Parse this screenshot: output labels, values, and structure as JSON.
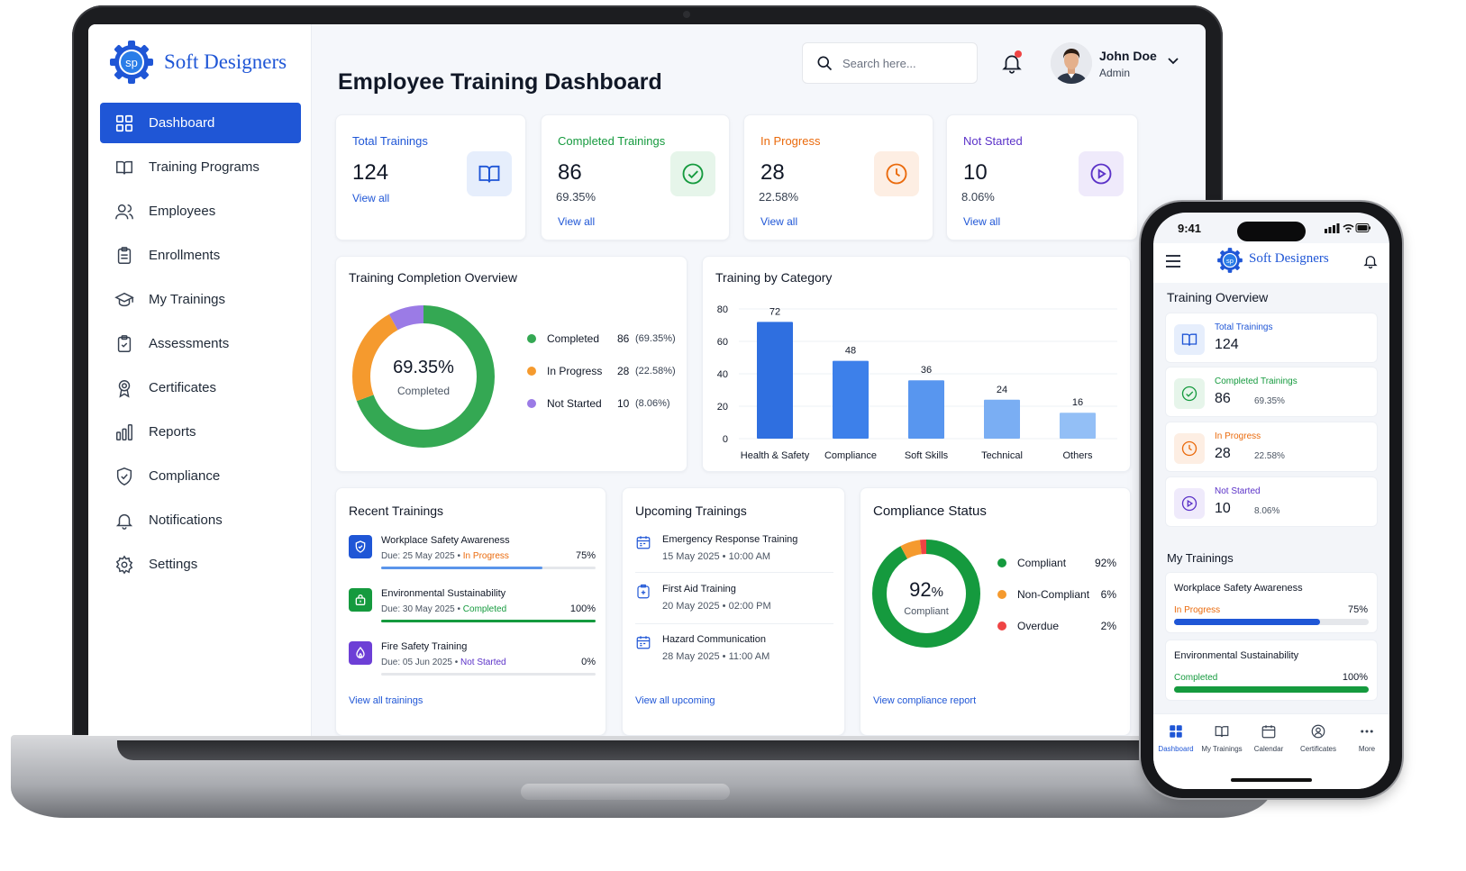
{
  "brand": {
    "name": "Soft Designers",
    "initials": "sp"
  },
  "sidebar": {
    "items": [
      {
        "label": "Dashboard",
        "icon": "grid-icon",
        "active": true
      },
      {
        "label": "Training Programs",
        "icon": "book-icon"
      },
      {
        "label": "Employees",
        "icon": "users-icon"
      },
      {
        "label": "Enrollments",
        "icon": "clipboard-icon"
      },
      {
        "label": "My Trainings",
        "icon": "graduation-cap-icon"
      },
      {
        "label": "Assessments",
        "icon": "clipboard-check-icon"
      },
      {
        "label": "Certificates",
        "icon": "award-icon"
      },
      {
        "label": "Reports",
        "icon": "bar-chart-icon"
      },
      {
        "label": "Compliance",
        "icon": "shield-check-icon"
      },
      {
        "label": "Notifications",
        "icon": "bell-icon"
      },
      {
        "label": "Settings",
        "icon": "gear-icon"
      }
    ]
  },
  "header": {
    "title": "Employee Training Dashboard",
    "search_placeholder": "Search here...",
    "user": {
      "name": "John Doe",
      "role": "Admin"
    }
  },
  "stats": [
    {
      "label": "Total Trainings",
      "value": "124",
      "pct": "",
      "link": "View all",
      "color": "#1f56d6",
      "icon": "book-open-icon"
    },
    {
      "label": "Completed Trainings",
      "value": "86",
      "pct": "69.35%",
      "link": "View all",
      "color": "#159a3e",
      "icon": "check-circle-icon"
    },
    {
      "label": "In Progress",
      "value": "28",
      "pct": "22.58%",
      "link": "View all",
      "color": "#ea6a0c",
      "icon": "clock-icon"
    },
    {
      "label": "Not Started",
      "value": "10",
      "pct": "8.06%",
      "link": "View all",
      "color": "#5b32c8",
      "icon": "play-circle-icon"
    }
  ],
  "completion": {
    "title": "Training Completion Overview",
    "center_value": "69.35%",
    "center_label": "Completed",
    "legend": [
      {
        "label": "Completed",
        "count": "86",
        "pct": "(69.35%)",
        "value": 86,
        "color": "#34a853"
      },
      {
        "label": "In Progress",
        "count": "28",
        "pct": "(22.58%)",
        "value": 28,
        "color": "#f59a2e"
      },
      {
        "label": "Not Started",
        "count": "10",
        "pct": "(8.06%)",
        "value": 10,
        "color": "#9b7be6"
      }
    ]
  },
  "chart_data": {
    "type": "bar",
    "title": "Training by Category",
    "categories": [
      "Health & Safety",
      "Compliance",
      "Soft Skills",
      "Technical",
      "Others"
    ],
    "values": [
      72,
      48,
      36,
      24,
      16
    ],
    "yticks": [
      "0",
      "20",
      "40",
      "60",
      "80"
    ],
    "ylim": [
      0,
      80
    ],
    "colors": [
      "#2f6fe0",
      "#3d80ea",
      "#5896ef",
      "#7aaef3",
      "#93bff6"
    ],
    "grid": true,
    "xlabel": "",
    "ylabel": ""
  },
  "recent": {
    "title": "Recent Trainings",
    "items": [
      {
        "title": "Workplace Safety Awareness",
        "due": "Due: 25 May 2025",
        "status": "In Progress",
        "pct": "75%",
        "progress": 0.75,
        "status_color": "#ea6a0c",
        "bar_color": "#5b95ea",
        "icon_bg": "#1f56d6",
        "icon": "shield-icon"
      },
      {
        "title": "Environmental Sustainability",
        "due": "Due: 30 May 2025",
        "status": "Completed",
        "pct": "100%",
        "progress": 1.0,
        "status_color": "#159a3e",
        "bar_color": "#159a3e",
        "icon_bg": "#159a3e",
        "icon": "leaf-icon"
      },
      {
        "title": "Fire Safety Training",
        "due": "Due: 05 Jun 2025",
        "status": "Not Started",
        "pct": "0%",
        "progress": 0.0,
        "status_color": "#5b32c8",
        "bar_color": "#5b32c8",
        "icon_bg": "#6d3fd6",
        "icon": "flame-icon"
      }
    ],
    "link": "View all trainings"
  },
  "upcoming": {
    "title": "Upcoming Trainings",
    "items": [
      {
        "title": "Emergency Response Training",
        "date": "15 May 2025",
        "time": "10:00 AM"
      },
      {
        "title": "First Aid Training",
        "date": "20 May 2025",
        "time": "02:00 PM"
      },
      {
        "title": "Hazard Communication",
        "date": "28 May 2025",
        "time": "11:00 AM"
      }
    ],
    "link": "View all upcoming"
  },
  "compliance": {
    "title": "Compliance Status",
    "center_value": "92",
    "center_unit": "%",
    "center_label": "Compliant",
    "legend": [
      {
        "label": "Compliant",
        "pct": "92%",
        "value": 92,
        "color": "#159a3e"
      },
      {
        "label": "Non-Compliant",
        "pct": "6%",
        "value": 6,
        "color": "#f59a2e"
      },
      {
        "label": "Overdue",
        "pct": "2%",
        "value": 2,
        "color": "#ef4444"
      }
    ],
    "link": "View compliance report"
  },
  "phone": {
    "time": "9:41",
    "brand": "Soft Designers",
    "overview_title": "Training Overview",
    "cards": [
      {
        "label": "Total Trainings",
        "value": "124",
        "pct": "",
        "color": "#1f56d6",
        "icon": "book-open-icon"
      },
      {
        "label": "Completed Trainings",
        "value": "86",
        "pct": "69.35%",
        "color": "#159a3e",
        "icon": "check-circle-icon"
      },
      {
        "label": "In Progress",
        "value": "28",
        "pct": "22.58%",
        "color": "#ea6a0c",
        "icon": "clock-icon"
      },
      {
        "label": "Not Started",
        "value": "10",
        "pct": "8.06%",
        "color": "#5b32c8",
        "icon": "play-circle-icon"
      }
    ],
    "my_trainings_title": "My Trainings",
    "my_trainings": [
      {
        "title": "Workplace Safety Awareness",
        "status": "In Progress",
        "pct": "75%",
        "progress": 0.75,
        "status_color": "#ea6a0c",
        "bar_color": "#1f56d6"
      },
      {
        "title": "Environmental Sustainability",
        "status": "Completed",
        "pct": "100%",
        "progress": 1.0,
        "status_color": "#159a3e",
        "bar_color": "#159a3e"
      }
    ],
    "nav": [
      {
        "label": "Dashboard",
        "icon": "grid-icon",
        "active": true
      },
      {
        "label": "My Trainings",
        "icon": "book-icon"
      },
      {
        "label": "Calendar",
        "icon": "calendar-icon"
      },
      {
        "label": "Certificates",
        "icon": "award-icon"
      },
      {
        "label": "More",
        "icon": "more-icon"
      }
    ]
  }
}
